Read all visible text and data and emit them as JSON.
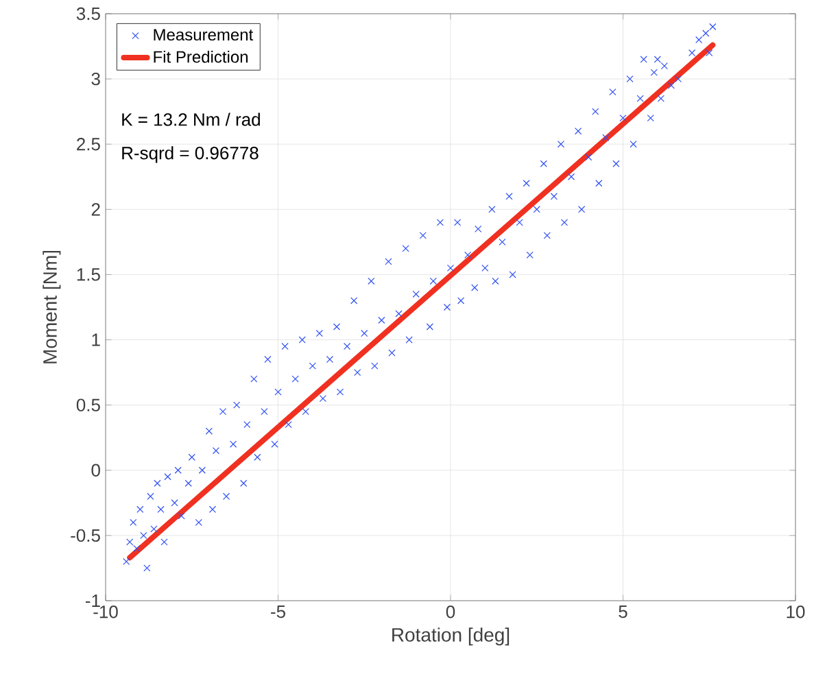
{
  "chart_data": {
    "type": "scatter",
    "xlabel": "Rotation [deg]",
    "ylabel": "Moment [Nm]",
    "xlim": [
      -10,
      10
    ],
    "xticks": [
      -10,
      -5,
      0,
      5,
      10
    ],
    "ylim": [
      -1,
      3.5
    ],
    "yticks": [
      -1,
      -0.5,
      0,
      0.5,
      1,
      1.5,
      2,
      2.5,
      3,
      3.5
    ],
    "grid": true,
    "legend": "top left",
    "annotations": [
      "K = 13.2 Nm / rad",
      "R-sqrd = 0.96778"
    ],
    "series": [
      {
        "name": "Measurement",
        "type": "scatter",
        "color": "#3050f0",
        "marker": "cross",
        "x": [
          -9.4,
          -9.3,
          -9.2,
          -9.1,
          -9.0,
          -8.9,
          -8.8,
          -8.7,
          -8.6,
          -8.5,
          -8.4,
          -8.3,
          -8.2,
          -8.0,
          -7.9,
          -7.8,
          -7.6,
          -7.5,
          -7.3,
          -7.2,
          -7.0,
          -6.9,
          -6.8,
          -6.6,
          -6.5,
          -6.3,
          -6.2,
          -6.0,
          -5.9,
          -5.7,
          -5.6,
          -5.4,
          -5.3,
          -5.1,
          -5.0,
          -4.8,
          -4.7,
          -4.5,
          -4.3,
          -4.2,
          -4.0,
          -3.8,
          -3.7,
          -3.5,
          -3.3,
          -3.2,
          -3.0,
          -2.8,
          -2.7,
          -2.5,
          -2.3,
          -2.2,
          -2.0,
          -1.8,
          -1.7,
          -1.5,
          -1.3,
          -1.2,
          -1.0,
          -0.8,
          -0.6,
          -0.5,
          -0.3,
          -0.1,
          0.0,
          0.2,
          0.3,
          0.5,
          0.7,
          0.8,
          1.0,
          1.2,
          1.3,
          1.5,
          1.7,
          1.8,
          2.0,
          2.2,
          2.3,
          2.5,
          2.7,
          2.8,
          3.0,
          3.2,
          3.3,
          3.5,
          3.7,
          3.8,
          4.0,
          4.2,
          4.3,
          4.5,
          4.7,
          4.8,
          5.0,
          5.2,
          5.3,
          5.5,
          5.6,
          5.8,
          5.9,
          6.0,
          6.1,
          6.2,
          6.4,
          6.6,
          7.0,
          7.2,
          7.4,
          7.5,
          7.6
        ],
        "values": [
          -0.7,
          -0.55,
          -0.4,
          -0.6,
          -0.3,
          -0.5,
          -0.75,
          -0.2,
          -0.45,
          -0.1,
          -0.3,
          -0.55,
          -0.05,
          -0.25,
          0.0,
          -0.35,
          -0.1,
          0.1,
          -0.4,
          0.0,
          0.3,
          -0.3,
          0.15,
          0.45,
          -0.2,
          0.2,
          0.5,
          -0.1,
          0.35,
          0.7,
          0.1,
          0.45,
          0.85,
          0.2,
          0.6,
          0.95,
          0.35,
          0.7,
          1.0,
          0.45,
          0.8,
          1.05,
          0.55,
          0.85,
          1.1,
          0.6,
          0.95,
          1.3,
          0.75,
          1.05,
          1.45,
          0.8,
          1.15,
          1.6,
          0.9,
          1.2,
          1.7,
          1.0,
          1.35,
          1.8,
          1.1,
          1.45,
          1.9,
          1.25,
          1.55,
          1.9,
          1.3,
          1.65,
          1.4,
          1.85,
          1.55,
          2.0,
          1.45,
          1.75,
          2.1,
          1.5,
          1.9,
          2.2,
          1.65,
          2.0,
          2.35,
          1.8,
          2.1,
          2.5,
          1.9,
          2.25,
          2.6,
          2.0,
          2.4,
          2.75,
          2.2,
          2.55,
          2.9,
          2.35,
          2.7,
          3.0,
          2.5,
          2.85,
          3.15,
          2.7,
          3.05,
          3.15,
          2.85,
          3.1,
          2.95,
          3.0,
          3.2,
          3.3,
          3.35,
          3.2,
          3.4
        ]
      },
      {
        "name": "Fit Prediction",
        "type": "line",
        "color": "#f03020",
        "marker": "none",
        "line_style": "solid",
        "x": [
          -9.3,
          7.6
        ],
        "values": [
          -0.67,
          3.26
        ]
      }
    ]
  }
}
